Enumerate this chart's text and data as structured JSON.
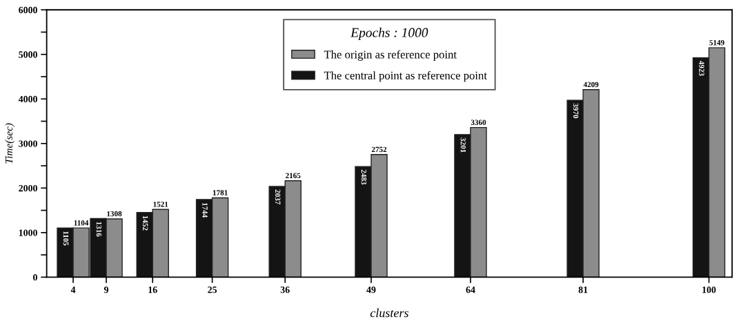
{
  "chart_data": {
    "type": "bar",
    "xlabel": "clusters",
    "ylabel": "Time(sec)",
    "legend_title": "Epochs : 1000",
    "x": [
      4,
      9,
      16,
      25,
      36,
      49,
      64,
      81,
      100
    ],
    "series": [
      {
        "name": "The central point as reference point",
        "color": "#141414",
        "values": [
          1105,
          1316,
          1452,
          1744,
          2037,
          2483,
          3201,
          3970,
          4923
        ]
      },
      {
        "name": "The origin as reference point",
        "color": "#8c8c8c",
        "values": [
          1104,
          1308,
          1521,
          1781,
          2165,
          2752,
          3360,
          4209,
          5149
        ]
      }
    ],
    "xlim": [
      0,
      103.5
    ],
    "xticks": [
      4,
      9,
      16,
      25,
      36,
      49,
      64,
      81,
      100
    ],
    "ylim": [
      0,
      6000
    ],
    "yticks": [
      0,
      {
        "value": 500,
        "label": null
      },
      1000,
      {
        "value": 1500,
        "label": null
      },
      2000,
      {
        "value": 2500,
        "label": null
      },
      3000,
      {
        "value": 3500,
        "label": null
      },
      4000,
      {
        "value": 4500,
        "label": null
      },
      5000,
      {
        "value": 5500,
        "label": null
      },
      6000
    ],
    "data_labels": true,
    "legend": "top",
    "grid": false
  }
}
